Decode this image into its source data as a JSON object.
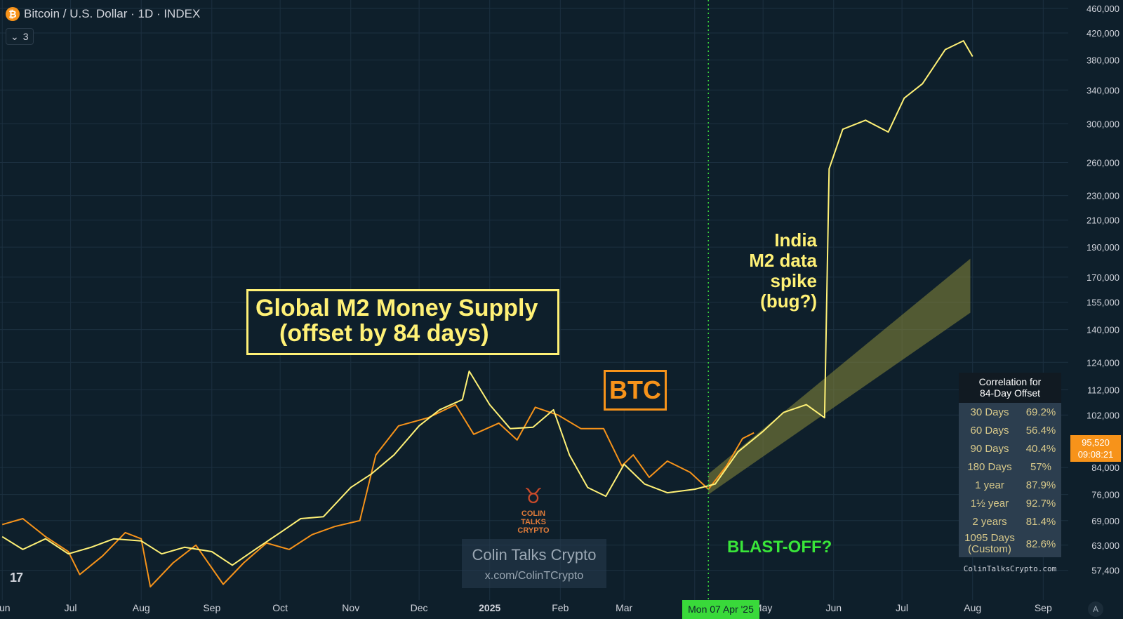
{
  "header": {
    "symbol_icon": "bitcoin-icon",
    "title": "Bitcoin / U.S. Dollar · 1D · INDEX"
  },
  "indicators_toggle": {
    "icon": "chevron-down-icon",
    "count": "3"
  },
  "tv_logo": "17",
  "annotations": {
    "m2_line1": "Global M2 Money Supply",
    "m2_line2": "(offset by 84 days)",
    "btc": "BTC",
    "india": [
      "India",
      "M2 data",
      "spike",
      "(bug?)"
    ],
    "blastoff": "BLAST-OFF?"
  },
  "watermark": {
    "name": "Colin Talks Crypto",
    "handle": "x.com/ColinTCrypto",
    "logo_text": "COLIN TALKS CRYPTO"
  },
  "correlation": {
    "title_line1": "Correlation for",
    "title_line2": "84-Day Offset",
    "rows": [
      {
        "period": "30 Days",
        "value": "69.2%"
      },
      {
        "period": "60 Days",
        "value": "56.4%"
      },
      {
        "period": "90 Days",
        "value": "40.4%"
      },
      {
        "period": "180 Days",
        "value": "57%"
      },
      {
        "period": "1 year",
        "value": "87.9%"
      },
      {
        "period": "1½ year",
        "value": "92.7%"
      },
      {
        "period": "2 years",
        "value": "81.4%"
      }
    ],
    "custom_row": {
      "period_line1": "1095 Days",
      "period_line2": "(Custom)",
      "value": "82.6%"
    },
    "site": "ColinTalksCrypto.com"
  },
  "price_label": {
    "price": "95,520",
    "countdown": "09:08:21"
  },
  "crosshair_date": "Mon 07 Apr '25",
  "scale_button": "A",
  "colors": {
    "background": "#0e1f2b",
    "btc_line": "#f7931a",
    "m2_line": "#fff176",
    "channel_fill": "#8a8a3a",
    "crosshair": "#39d93a"
  },
  "chart_data": {
    "type": "line",
    "scale": "log",
    "ylim": [
      55000,
      460000
    ],
    "y_ticks": [
      460000,
      420000,
      380000,
      340000,
      300000,
      260000,
      230000,
      210000,
      190000,
      170000,
      155000,
      140000,
      124000,
      112000,
      102000,
      84000,
      76000,
      69000,
      63000,
      57400
    ],
    "y_tick_labels": [
      "460,000",
      "420,000",
      "380,000",
      "340,000",
      "300,000",
      "260,000",
      "230,000",
      "210,000",
      "190,000",
      "170,000",
      "155,000",
      "140,000",
      "124,000",
      "112,000",
      "102,000",
      "84,000",
      "76,000",
      "69,000",
      "63,000",
      "57,400"
    ],
    "x_range": [
      "2024-05-31",
      "2025-09-12"
    ],
    "x_ticks": [
      {
        "date": "2024-06-01",
        "label": "Jun"
      },
      {
        "date": "2024-07-01",
        "label": "Jul"
      },
      {
        "date": "2024-08-01",
        "label": "Aug"
      },
      {
        "date": "2024-09-01",
        "label": "Sep"
      },
      {
        "date": "2024-10-01",
        "label": "Oct"
      },
      {
        "date": "2024-11-01",
        "label": "Nov"
      },
      {
        "date": "2024-12-01",
        "label": "Dec"
      },
      {
        "date": "2025-01-01",
        "label": "2025"
      },
      {
        "date": "2025-02-01",
        "label": "Feb"
      },
      {
        "date": "2025-03-01",
        "label": "Mar"
      },
      {
        "date": "2025-04-01",
        "label": "Apr"
      },
      {
        "date": "2025-05-01",
        "label": "May"
      },
      {
        "date": "2025-06-01",
        "label": "Jun"
      },
      {
        "date": "2025-07-01",
        "label": "Jul"
      },
      {
        "date": "2025-08-01",
        "label": "Aug"
      },
      {
        "date": "2025-09-01",
        "label": "Sep"
      }
    ],
    "crosshair_x": "2025-04-07",
    "series": [
      {
        "color": "#f7931a",
        "points": [
          [
            "2024-06-01",
            68000
          ],
          [
            "2024-06-10",
            69500
          ],
          [
            "2024-06-20",
            65000
          ],
          [
            "2024-06-30",
            61500
          ],
          [
            "2024-07-05",
            56500
          ],
          [
            "2024-07-15",
            60500
          ],
          [
            "2024-07-25",
            66000
          ],
          [
            "2024-08-01",
            64500
          ],
          [
            "2024-08-05",
            54000
          ],
          [
            "2024-08-15",
            59000
          ],
          [
            "2024-08-25",
            63000
          ],
          [
            "2024-09-06",
            54500
          ],
          [
            "2024-09-15",
            59000
          ],
          [
            "2024-09-25",
            63500
          ],
          [
            "2024-10-05",
            62000
          ],
          [
            "2024-10-15",
            65500
          ],
          [
            "2024-10-25",
            67500
          ],
          [
            "2024-11-05",
            69000
          ],
          [
            "2024-11-12",
            88000
          ],
          [
            "2024-11-22",
            98000
          ],
          [
            "2024-12-05",
            101000
          ],
          [
            "2024-12-17",
            106000
          ],
          [
            "2024-12-25",
            95000
          ],
          [
            "2025-01-05",
            99000
          ],
          [
            "2025-01-13",
            93000
          ],
          [
            "2025-01-21",
            105000
          ],
          [
            "2025-01-31",
            102000
          ],
          [
            "2025-02-10",
            97000
          ],
          [
            "2025-02-20",
            97000
          ],
          [
            "2025-02-28",
            84500
          ],
          [
            "2025-03-05",
            88000
          ],
          [
            "2025-03-12",
            81000
          ],
          [
            "2025-03-20",
            86000
          ],
          [
            "2025-03-30",
            82500
          ],
          [
            "2025-04-07",
            77500
          ],
          [
            "2025-04-15",
            84500
          ],
          [
            "2025-04-22",
            93500
          ],
          [
            "2025-04-27",
            95500
          ]
        ]
      },
      {
        "color": "#fff176",
        "points": [
          [
            "2024-06-01",
            65000
          ],
          [
            "2024-06-10",
            62000
          ],
          [
            "2024-06-20",
            64500
          ],
          [
            "2024-06-30",
            61000
          ],
          [
            "2024-07-10",
            62500
          ],
          [
            "2024-07-20",
            64500
          ],
          [
            "2024-08-01",
            64000
          ],
          [
            "2024-08-10",
            61000
          ],
          [
            "2024-08-20",
            62500
          ],
          [
            "2024-09-01",
            61500
          ],
          [
            "2024-09-10",
            58500
          ],
          [
            "2024-09-20",
            62000
          ],
          [
            "2024-10-01",
            66000
          ],
          [
            "2024-10-10",
            69500
          ],
          [
            "2024-10-20",
            70000
          ],
          [
            "2024-11-01",
            78000
          ],
          [
            "2024-11-10",
            82000
          ],
          [
            "2024-11-20",
            88000
          ],
          [
            "2024-12-01",
            98000
          ],
          [
            "2024-12-10",
            104000
          ],
          [
            "2024-12-20",
            108000
          ],
          [
            "2024-12-23",
            120000
          ],
          [
            "2025-01-01",
            106000
          ],
          [
            "2025-01-10",
            97000
          ],
          [
            "2025-01-20",
            97500
          ],
          [
            "2025-01-29",
            104000
          ],
          [
            "2025-02-05",
            88000
          ],
          [
            "2025-02-13",
            78000
          ],
          [
            "2025-02-21",
            75500
          ],
          [
            "2025-03-01",
            85000
          ],
          [
            "2025-03-10",
            79000
          ],
          [
            "2025-03-20",
            76500
          ],
          [
            "2025-04-01",
            77500
          ],
          [
            "2025-04-10",
            79000
          ],
          [
            "2025-04-20",
            89000
          ],
          [
            "2025-05-01",
            96000
          ],
          [
            "2025-05-10",
            103000
          ],
          [
            "2025-05-20",
            106000
          ],
          [
            "2025-05-28",
            101000
          ],
          [
            "2025-05-30",
            254000
          ],
          [
            "2025-06-05",
            294000
          ],
          [
            "2025-06-15",
            304000
          ],
          [
            "2025-06-25",
            291000
          ],
          [
            "2025-07-02",
            330000
          ],
          [
            "2025-07-10",
            348000
          ],
          [
            "2025-07-20",
            395000
          ],
          [
            "2025-07-28",
            408000
          ],
          [
            "2025-08-01",
            385000
          ]
        ]
      }
    ],
    "channel": {
      "lower": [
        [
          "2025-04-07",
          76000
        ],
        [
          "2025-07-31",
          149000
        ]
      ],
      "upper": [
        [
          "2025-04-07",
          82000
        ],
        [
          "2025-07-31",
          182000
        ]
      ]
    }
  }
}
